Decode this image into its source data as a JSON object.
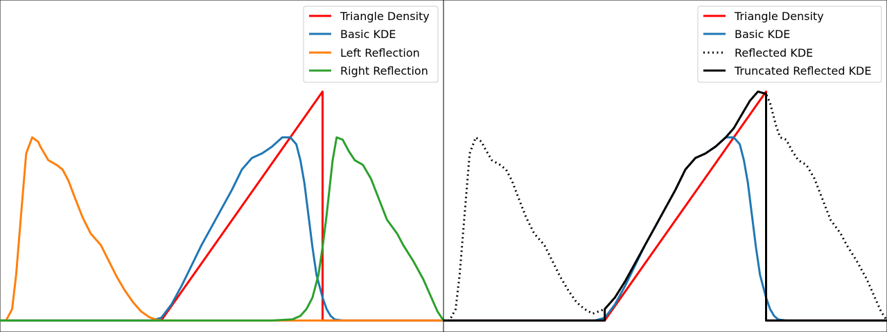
{
  "chart_data": [
    {
      "type": "line",
      "title": "",
      "xlabel": "",
      "ylabel": "",
      "xlim": [
        -1.1,
        1.1
      ],
      "ylim": [
        -0.05,
        1.4
      ],
      "grid": false,
      "legend_placement": "upper-right",
      "series": [
        {
          "name": "Triangle Density",
          "color": "#ff0000",
          "dash": "solid",
          "x": [
            -1.1,
            -0.3,
            -0.3,
            0.5,
            0.5,
            1.1
          ],
          "y": [
            0,
            0,
            0,
            1,
            0,
            0
          ]
        },
        {
          "name": "Basic KDE",
          "color": "#1f77b4",
          "dash": "solid",
          "x": [
            -1.1,
            -0.35,
            -0.3,
            -0.25,
            -0.2,
            -0.15,
            -0.1,
            -0.05,
            0.0,
            0.05,
            0.1,
            0.15,
            0.2,
            0.25,
            0.3,
            0.34,
            0.37,
            0.39,
            0.41,
            0.43,
            0.45,
            0.47,
            0.5,
            0.52,
            0.54,
            0.56,
            0.6,
            0.7,
            1.1
          ],
          "y": [
            0,
            0.0,
            0.012,
            0.07,
            0.15,
            0.24,
            0.33,
            0.41,
            0.49,
            0.57,
            0.66,
            0.71,
            0.73,
            0.76,
            0.8,
            0.8,
            0.77,
            0.7,
            0.6,
            0.46,
            0.32,
            0.2,
            0.1,
            0.05,
            0.02,
            0.005,
            0.0,
            0.0,
            0
          ]
        },
        {
          "name": "Left Reflection",
          "color": "#ff7f0e",
          "dash": "solid",
          "x": [
            -1.1,
            -1.07,
            -1.04,
            -1.02,
            -0.99,
            -0.97,
            -0.94,
            -0.91,
            -0.9,
            -0.86,
            -0.82,
            -0.79,
            -0.76,
            -0.73,
            -0.69,
            -0.65,
            -0.6,
            -0.56,
            -0.52,
            -0.48,
            -0.44,
            -0.4,
            -0.36,
            -0.33,
            -0.3,
            -0.28,
            -0.2,
            1.1
          ],
          "y": [
            0,
            0.0,
            0.05,
            0.2,
            0.52,
            0.73,
            0.8,
            0.78,
            0.76,
            0.7,
            0.68,
            0.66,
            0.61,
            0.54,
            0.45,
            0.38,
            0.33,
            0.26,
            0.19,
            0.13,
            0.08,
            0.04,
            0.015,
            0.005,
            0.0,
            0.0,
            0,
            0
          ]
        },
        {
          "name": "Right Reflection",
          "color": "#2ca02c",
          "dash": "solid",
          "x": [
            -1.1,
            -0.3,
            -0.2,
            0.25,
            0.35,
            0.39,
            0.42,
            0.45,
            0.48,
            0.5,
            0.52,
            0.55,
            0.57,
            0.6,
            0.63,
            0.66,
            0.7,
            0.74,
            0.78,
            0.82,
            0.87,
            0.9,
            0.95,
            1.0,
            1.04,
            1.07,
            1.1
          ],
          "y": [
            0.0,
            0.0,
            0.0,
            0.0,
            0.005,
            0.02,
            0.05,
            0.1,
            0.2,
            0.32,
            0.46,
            0.7,
            0.8,
            0.79,
            0.74,
            0.7,
            0.68,
            0.62,
            0.53,
            0.44,
            0.38,
            0.33,
            0.26,
            0.18,
            0.1,
            0.04,
            0.0
          ]
        }
      ]
    },
    {
      "type": "line",
      "title": "",
      "xlabel": "",
      "ylabel": "",
      "xlim": [
        -1.1,
        1.1
      ],
      "ylim": [
        -0.05,
        1.4
      ],
      "grid": false,
      "legend_placement": "upper-right",
      "series": [
        {
          "name": "Triangle Density",
          "color": "#ff0000",
          "dash": "solid",
          "x": [
            -1.1,
            -0.3,
            -0.3,
            0.5,
            0.5,
            1.1
          ],
          "y": [
            0,
            0,
            0,
            1,
            0,
            0
          ]
        },
        {
          "name": "Basic KDE",
          "color": "#1f77b4",
          "dash": "solid",
          "x": [
            -1.1,
            -0.35,
            -0.3,
            -0.25,
            -0.2,
            -0.15,
            -0.1,
            -0.05,
            0.0,
            0.05,
            0.1,
            0.15,
            0.2,
            0.25,
            0.3,
            0.34,
            0.37,
            0.39,
            0.41,
            0.43,
            0.45,
            0.47,
            0.5,
            0.52,
            0.54,
            0.56,
            0.6,
            0.7,
            1.1
          ],
          "y": [
            0,
            0.0,
            0.012,
            0.07,
            0.15,
            0.24,
            0.33,
            0.41,
            0.49,
            0.57,
            0.66,
            0.71,
            0.73,
            0.76,
            0.8,
            0.8,
            0.77,
            0.7,
            0.6,
            0.46,
            0.32,
            0.2,
            0.1,
            0.05,
            0.02,
            0.005,
            0.0,
            0.0,
            0
          ]
        },
        {
          "name": "Reflected KDE",
          "color": "#000000",
          "dash": "dotted",
          "x": [
            -1.1,
            -1.07,
            -1.04,
            -1.02,
            -0.99,
            -0.97,
            -0.94,
            -0.91,
            -0.9,
            -0.86,
            -0.82,
            -0.79,
            -0.76,
            -0.73,
            -0.69,
            -0.65,
            -0.6,
            -0.56,
            -0.52,
            -0.48,
            -0.44,
            -0.4,
            -0.36,
            -0.33,
            -0.3,
            -0.25,
            -0.2,
            -0.15,
            -0.1,
            -0.05,
            0.0,
            0.05,
            0.1,
            0.15,
            0.2,
            0.25,
            0.3,
            0.34,
            0.38,
            0.42,
            0.46,
            0.5,
            0.52,
            0.55,
            0.57,
            0.6,
            0.63,
            0.66,
            0.7,
            0.74,
            0.78,
            0.82,
            0.87,
            0.9,
            0.95,
            1.0,
            1.04,
            1.07,
            1.1
          ],
          "y": [
            0,
            0.0,
            0.05,
            0.2,
            0.52,
            0.73,
            0.8,
            0.78,
            0.76,
            0.7,
            0.68,
            0.66,
            0.61,
            0.54,
            0.45,
            0.38,
            0.33,
            0.26,
            0.19,
            0.13,
            0.08,
            0.05,
            0.03,
            0.04,
            0.05,
            0.1,
            0.17,
            0.25,
            0.33,
            0.41,
            0.49,
            0.57,
            0.66,
            0.71,
            0.73,
            0.76,
            0.8,
            0.84,
            0.9,
            0.96,
            1.0,
            0.99,
            0.95,
            0.85,
            0.8,
            0.79,
            0.74,
            0.7,
            0.68,
            0.62,
            0.53,
            0.44,
            0.38,
            0.33,
            0.26,
            0.18,
            0.1,
            0.04,
            0.0
          ]
        },
        {
          "name": "Truncated Reflected KDE",
          "color": "#000000",
          "dash": "solid",
          "x": [
            -1.1,
            -0.3,
            -0.3,
            -0.25,
            -0.2,
            -0.15,
            -0.1,
            -0.05,
            0.0,
            0.05,
            0.1,
            0.15,
            0.2,
            0.25,
            0.3,
            0.34,
            0.38,
            0.42,
            0.46,
            0.5,
            0.5,
            1.1
          ],
          "y": [
            0,
            0,
            0.05,
            0.1,
            0.17,
            0.25,
            0.33,
            0.41,
            0.49,
            0.57,
            0.66,
            0.71,
            0.73,
            0.76,
            0.8,
            0.84,
            0.9,
            0.96,
            1.0,
            0.99,
            0,
            0
          ]
        }
      ]
    }
  ]
}
